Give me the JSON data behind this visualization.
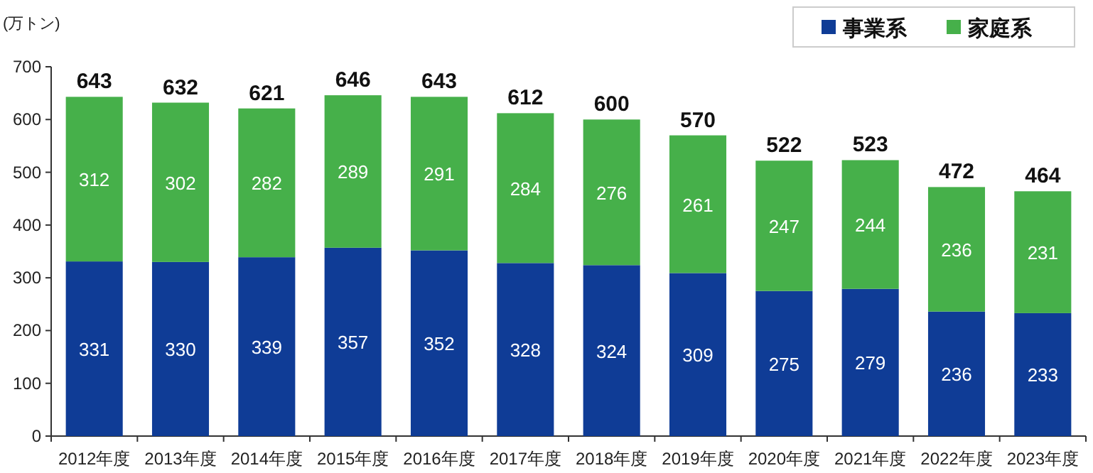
{
  "chart_data": {
    "type": "bar",
    "stacked": true,
    "ylabel": "(万トン)",
    "categories": [
      "2012年度",
      "2013年度",
      "2014年度",
      "2015年度",
      "2016年度",
      "2017年度",
      "2018年度",
      "2019年度",
      "2020年度",
      "2021年度",
      "2022年度",
      "2023年度"
    ],
    "series": [
      {
        "name": "事業系",
        "color": "#0f3c96",
        "values": [
          331,
          330,
          339,
          357,
          352,
          328,
          324,
          309,
          275,
          279,
          236,
          233
        ]
      },
      {
        "name": "家庭系",
        "color": "#46b04a",
        "values": [
          312,
          302,
          282,
          289,
          291,
          284,
          276,
          261,
          247,
          244,
          236,
          231
        ]
      }
    ],
    "totals": [
      "643",
      "632",
      "621",
      "646",
      "643",
      "612",
      "600",
      "570",
      "522",
      "523",
      "472",
      "464"
    ],
    "data_labels": true,
    "ylim": [
      0,
      700
    ],
    "yticks": [
      0,
      100,
      200,
      300,
      400,
      500,
      600,
      700
    ],
    "grid": false,
    "legend": "top right"
  }
}
